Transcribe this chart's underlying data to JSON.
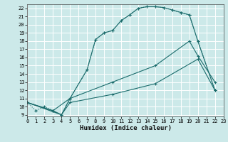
{
  "xlabel": "Humidex (Indice chaleur)",
  "bg_color": "#cce9e9",
  "grid_color": "#ffffff",
  "line_color": "#1a6b6b",
  "xlim": [
    0,
    23
  ],
  "ylim": [
    8.8,
    22.5
  ],
  "xticks": [
    0,
    1,
    2,
    3,
    4,
    5,
    6,
    7,
    8,
    9,
    10,
    11,
    12,
    13,
    14,
    15,
    16,
    17,
    18,
    19,
    20,
    21,
    22,
    23
  ],
  "yticks": [
    9,
    10,
    11,
    12,
    13,
    14,
    15,
    16,
    17,
    18,
    19,
    20,
    21,
    22
  ],
  "curve1_x": [
    0,
    1,
    2,
    3,
    4,
    5,
    7,
    8,
    9,
    10,
    11,
    12,
    13,
    14,
    15,
    16,
    17,
    18,
    19,
    20,
    22
  ],
  "curve1_y": [
    10.5,
    9.5,
    10.0,
    9.5,
    9.0,
    11.0,
    14.5,
    18.2,
    19.0,
    19.3,
    20.5,
    21.2,
    22.0,
    22.2,
    22.2,
    22.1,
    21.8,
    21.5,
    21.2,
    18.0,
    12.0
  ],
  "curve2_x": [
    0,
    3,
    4,
    5,
    7,
    8,
    9,
    10,
    11,
    12,
    13,
    14,
    15,
    16,
    17,
    18,
    19,
    20,
    22
  ],
  "curve2_y": [
    10.5,
    9.5,
    9.0,
    11.0,
    14.5,
    18.2,
    19.0,
    19.3,
    20.5,
    21.2,
    22.0,
    22.2,
    22.2,
    22.1,
    21.8,
    21.5,
    21.2,
    18.0,
    12.0
  ],
  "curve3_x": [
    0,
    3,
    5,
    10,
    15,
    19,
    20,
    22
  ],
  "curve3_y": [
    10.5,
    9.5,
    11.0,
    13.0,
    15.0,
    18.0,
    16.2,
    13.0
  ],
  "curve4_x": [
    0,
    4,
    5,
    10,
    15,
    20,
    22
  ],
  "curve4_y": [
    10.5,
    9.0,
    10.5,
    11.5,
    12.8,
    15.8,
    12.0
  ]
}
